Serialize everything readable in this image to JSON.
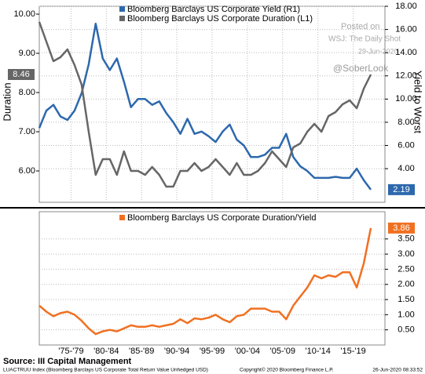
{
  "chart_data": [
    {
      "type": "line",
      "x": [
        1973,
        1974,
        1975,
        1976,
        1977,
        1978,
        1979,
        1980,
        1981,
        1982,
        1983,
        1984,
        1985,
        1986,
        1987,
        1988,
        1989,
        1990,
        1991,
        1992,
        1993,
        1994,
        1995,
        1996,
        1997,
        1998,
        1999,
        2000,
        2001,
        2002,
        2003,
        2004,
        2005,
        2006,
        2007,
        2008,
        2009,
        2010,
        2011,
        2012,
        2013,
        2014,
        2015,
        2016,
        2017,
        2018,
        2019,
        2020
      ],
      "xlim": [
        1973,
        2022
      ],
      "xticks": [
        {
          "value": 1977.5,
          "label": "'75-'79"
        },
        {
          "value": 1982.5,
          "label": "'80-'84"
        },
        {
          "value": 1987.5,
          "label": "'85-'89"
        },
        {
          "value": 1992.5,
          "label": "'90-'94"
        },
        {
          "value": 1997.5,
          "label": "'95-'99"
        },
        {
          "value": 2002.5,
          "label": "'00-'04"
        },
        {
          "value": 2007.5,
          "label": "'05-'09"
        },
        {
          "value": 2012.5,
          "label": "'10-'14"
        },
        {
          "value": 2017.5,
          "label": "'15-'19"
        }
      ],
      "ylabel": "Duration",
      "ylim": [
        5.2,
        10.2
      ],
      "yticks": [
        {
          "value": 6,
          "label": "6.00"
        },
        {
          "value": 7,
          "label": "7.00"
        },
        {
          "value": 8,
          "label": "8.00"
        },
        {
          "value": 9,
          "label": "9.00"
        },
        {
          "value": 10,
          "label": "10.00"
        }
      ],
      "y2label": "Yield to Worst",
      "y2lim": [
        1.1,
        18
      ],
      "y2ticks": [
        {
          "value": 4,
          "label": "4.00"
        },
        {
          "value": 6,
          "label": "6.00"
        },
        {
          "value": 8,
          "label": "8.00"
        },
        {
          "value": 10,
          "label": "10.00"
        },
        {
          "value": 12,
          "label": "12.00"
        },
        {
          "value": 14,
          "label": "14.00"
        },
        {
          "value": 16,
          "label": "16.00"
        },
        {
          "value": 18,
          "label": "18.00"
        }
      ],
      "grid": true,
      "series": [
        {
          "name": "Bloomberg Barclays US Corporate Yield (R1)",
          "color": "#2d68ad",
          "axis": "y2",
          "values": [
            7.5,
            9,
            9.5,
            8.5,
            8.2,
            9,
            10.5,
            13,
            16.5,
            13.5,
            12.5,
            13.5,
            11.5,
            9.3,
            10,
            10,
            9.5,
            9.8,
            8.8,
            8,
            7,
            8.3,
            7,
            7.2,
            6.8,
            6.3,
            7.2,
            7.8,
            6.5,
            6,
            5,
            5,
            5.2,
            5.8,
            5.8,
            7,
            5,
            4.2,
            3.8,
            3.2,
            3.2,
            3.2,
            3.3,
            3.2,
            3.2,
            4,
            3,
            2.19
          ]
        },
        {
          "name": "Bloomberg Barclays US Corporate Duration (L1)",
          "color": "#666666",
          "axis": "y",
          "values": [
            9.8,
            9.3,
            8.8,
            8.9,
            9.1,
            8.7,
            8.2,
            7,
            5.9,
            6.3,
            6.3,
            5.9,
            6.5,
            6,
            6,
            5.9,
            6.1,
            5.9,
            5.6,
            5.6,
            6,
            6,
            6.2,
            6,
            6.1,
            6.3,
            6.1,
            5.9,
            6.2,
            5.9,
            5.9,
            6,
            6.2,
            6.5,
            6.3,
            6.1,
            6.6,
            6.7,
            7,
            7.2,
            7,
            7.4,
            7.5,
            7.7,
            7.8,
            7.6,
            8.1,
            8.46
          ]
        }
      ]
    },
    {
      "type": "line",
      "x": [
        1973,
        1974,
        1975,
        1976,
        1977,
        1978,
        1979,
        1980,
        1981,
        1982,
        1983,
        1984,
        1985,
        1986,
        1987,
        1988,
        1989,
        1990,
        1991,
        1992,
        1993,
        1994,
        1995,
        1996,
        1997,
        1998,
        1999,
        2000,
        2001,
        2002,
        2003,
        2004,
        2005,
        2006,
        2007,
        2008,
        2009,
        2010,
        2011,
        2012,
        2013,
        2014,
        2015,
        2016,
        2017,
        2018,
        2019,
        2020
      ],
      "xlim": [
        1973,
        2022
      ],
      "y2lim": [
        0,
        4.4
      ],
      "y2ticks": [
        {
          "value": 0.5,
          "label": "0.50"
        },
        {
          "value": 1,
          "label": "1.00"
        },
        {
          "value": 1.5,
          "label": "1.50"
        },
        {
          "value": 2,
          "label": "2.00"
        },
        {
          "value": 2.5,
          "label": "2.50"
        },
        {
          "value": 3,
          "label": "3.00"
        },
        {
          "value": 3.5,
          "label": "3.50"
        }
      ],
      "grid": true,
      "series": [
        {
          "name": "Bloomberg Barclays US Corporate Duration/Yield",
          "color": "#f07021",
          "axis": "y2",
          "values": [
            1.3,
            1.1,
            0.95,
            1.05,
            1.1,
            1,
            0.8,
            0.55,
            0.36,
            0.45,
            0.5,
            0.45,
            0.55,
            0.65,
            0.6,
            0.6,
            0.65,
            0.6,
            0.65,
            0.7,
            0.85,
            0.72,
            0.88,
            0.85,
            0.9,
            1,
            0.85,
            0.75,
            0.95,
            1,
            1.2,
            1.2,
            1.2,
            1.1,
            1.1,
            0.85,
            1.3,
            1.6,
            1.9,
            2.3,
            2.2,
            2.3,
            2.25,
            2.4,
            2.4,
            1.9,
            2.7,
            3.86
          ]
        }
      ]
    }
  ],
  "watermark": [
    "Posted on",
    "WSJ: The Daily Shot",
    "29-Jun-2020",
    "@SoberLook"
  ],
  "source": "Source: III Capital Management",
  "footer": {
    "index": "LUACTRUU Index (Bloomberg Barclays US Corporate Total Return Value Unhedged USD)",
    "copyright": "Copyright© 2020 Bloomberg Finance L.P.",
    "timestamp": "26-Jun-2020 08:33:52"
  }
}
